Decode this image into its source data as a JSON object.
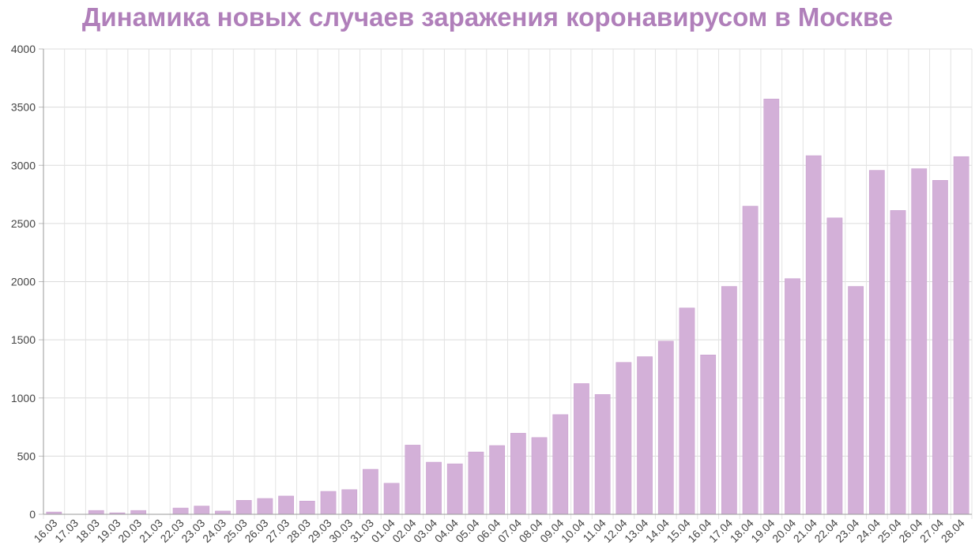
{
  "chart_data": {
    "type": "bar",
    "title": "Динамика новых случаев заражения коронавирусом в Москве",
    "xlabel": "",
    "ylabel": "",
    "ylim": [
      0,
      4000
    ],
    "yticks": [
      0,
      500,
      1000,
      1500,
      2000,
      2500,
      3000,
      3500,
      4000
    ],
    "grid": true,
    "categories": [
      "16.03",
      "17.03",
      "18.03",
      "19.03",
      "20.03",
      "21.03",
      "22.03",
      "23.03",
      "24.03",
      "25.03",
      "26.03",
      "27.03",
      "28.03",
      "29.03",
      "30.03",
      "31.03",
      "01.04",
      "02.04",
      "03.04",
      "04.04",
      "05.04",
      "06.04",
      "07.04",
      "08.04",
      "09.04",
      "10.04",
      "11.04",
      "12.04",
      "13.04",
      "14.04",
      "15.04",
      "16.04",
      "17.04",
      "18.04",
      "19.04",
      "20.04",
      "21.04",
      "22.04",
      "23.04",
      "24.04",
      "25.04",
      "26.04",
      "27.04",
      "28.04"
    ],
    "values": [
      20,
      0,
      33,
      13,
      33,
      0,
      54,
      71,
      28,
      120,
      136,
      157,
      114,
      197,
      212,
      387,
      267,
      595,
      448,
      434,
      536,
      591,
      697,
      660,
      857,
      1124,
      1030,
      1306,
      1355,
      1489,
      1774,
      1370,
      1959,
      2649,
      3570,
      2026,
      3083,
      2548,
      1959,
      2957,
      2612,
      2971,
      2871,
      3075
    ],
    "bar_color": "#d3b0d8",
    "bar_stroke": "#c79ccd",
    "title_color": "#b07fba"
  }
}
